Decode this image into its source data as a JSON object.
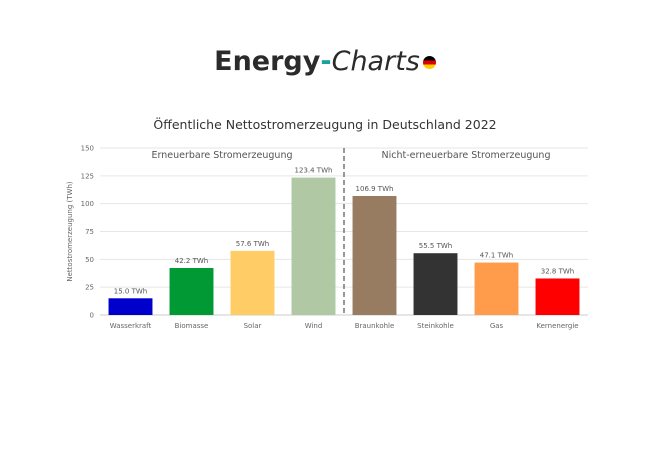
{
  "logo": {
    "energy": "Energy",
    "dash": "-",
    "charts": "Charts"
  },
  "chart_data": {
    "type": "bar",
    "title": "Öffentliche Nettostromerzeugung in Deutschland 2022",
    "ylabel": "Nettostromerzeugung (TWh)",
    "xlabel": "",
    "ylim": [
      0,
      150
    ],
    "yticks": [
      0,
      25,
      50,
      75,
      100,
      125,
      150
    ],
    "grid": true,
    "groups": [
      {
        "label": "Erneuerbare Stromerzeugung",
        "span": [
          0,
          3
        ]
      },
      {
        "label": "Nicht-erneuerbare Stromerzeugung",
        "span": [
          4,
          7
        ]
      }
    ],
    "categories": [
      "Wasserkraft",
      "Biomasse",
      "Solar",
      "Wind",
      "Braunkohle",
      "Steinkohle",
      "Gas",
      "Kernenergie"
    ],
    "values": [
      15.0,
      42.2,
      57.6,
      123.4,
      106.9,
      55.5,
      47.1,
      32.8
    ],
    "data_labels": [
      "15.0 TWh",
      "42.2 TWh",
      "57.6 TWh",
      "123.4 TWh",
      "106.9 TWh",
      "55.5 TWh",
      "47.1 TWh",
      "32.8 TWh"
    ],
    "colors": [
      "#0000cc",
      "#009933",
      "#ffcc66",
      "#b0c8a4",
      "#987c62",
      "#333333",
      "#ff9c4c",
      "#ff0000"
    ]
  }
}
